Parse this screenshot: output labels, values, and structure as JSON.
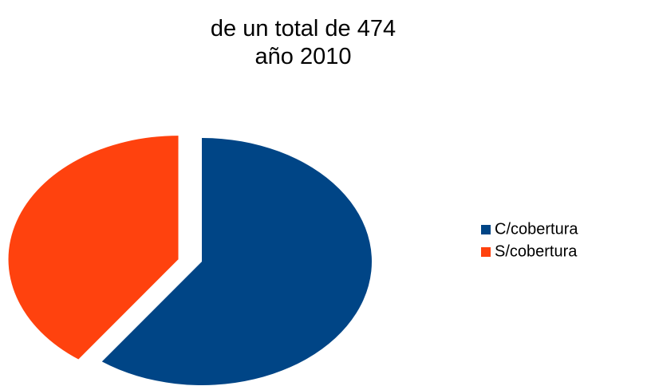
{
  "chart_data": {
    "type": "pie",
    "title": [
      "de un total de 474",
      "año 2010"
    ],
    "categories": [
      "C/cobertura",
      "S/cobertura"
    ],
    "values": [
      60,
      40
    ],
    "colors": [
      "#004586",
      "#ff420e"
    ],
    "exploded": [
      false,
      true
    ],
    "legend": "right"
  }
}
